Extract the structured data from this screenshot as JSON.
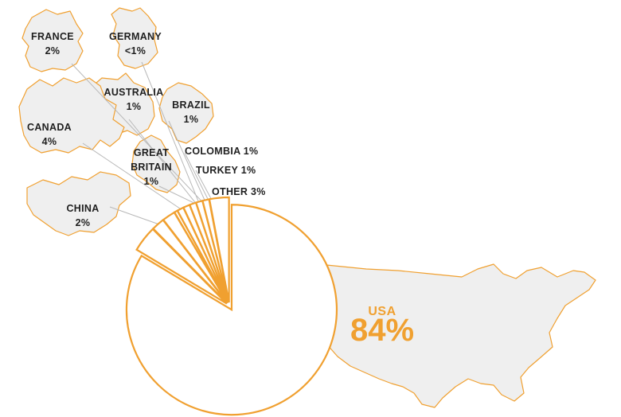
{
  "colors": {
    "accent": "#f0a030",
    "map_fill": "#efefef",
    "leader": "#b8b8b8",
    "text": "#1f1f1f"
  },
  "chart_data": {
    "type": "pie",
    "slices": [
      {
        "name": "USA",
        "value": 84,
        "label": "84%"
      },
      {
        "name": "CANADA",
        "value": 4,
        "label": "4%"
      },
      {
        "name": "FRANCE",
        "value": 2,
        "label": "2%"
      },
      {
        "name": "CHINA",
        "value": 2,
        "label": "2%"
      },
      {
        "name": "GERMANY",
        "value": 0.5,
        "label": "<1%"
      },
      {
        "name": "AUSTRALIA",
        "value": 1,
        "label": "1%"
      },
      {
        "name": "BRAZIL",
        "value": 1,
        "label": "1%"
      },
      {
        "name": "GREAT BRITAIN",
        "value": 1,
        "label": "1%"
      },
      {
        "name": "COLOMBIA",
        "value": 1,
        "label": "1%"
      },
      {
        "name": "TURKEY",
        "value": 1,
        "label": "1%"
      },
      {
        "name": "OTHER",
        "value": 3,
        "label": "3%"
      }
    ]
  },
  "labels": {
    "france": {
      "name": "FRANCE",
      "value": "2%"
    },
    "germany": {
      "name": "GERMANY",
      "value": "<1%"
    },
    "australia": {
      "name": "AUSTRALIA",
      "value": "1%"
    },
    "brazil": {
      "name": "BRAZIL",
      "value": "1%"
    },
    "canada": {
      "name": "CANADA",
      "value": "4%"
    },
    "great_britain": {
      "line1": "GREAT",
      "line2": "BRITAIN",
      "value": "1%"
    },
    "colombia": {
      "text": "COLOMBIA 1%"
    },
    "turkey": {
      "text": "TURKEY 1%"
    },
    "other": {
      "text": "OTHER 3%"
    },
    "china": {
      "name": "CHINA",
      "value": "2%"
    },
    "usa": {
      "name": "USA",
      "value": "84%"
    }
  }
}
